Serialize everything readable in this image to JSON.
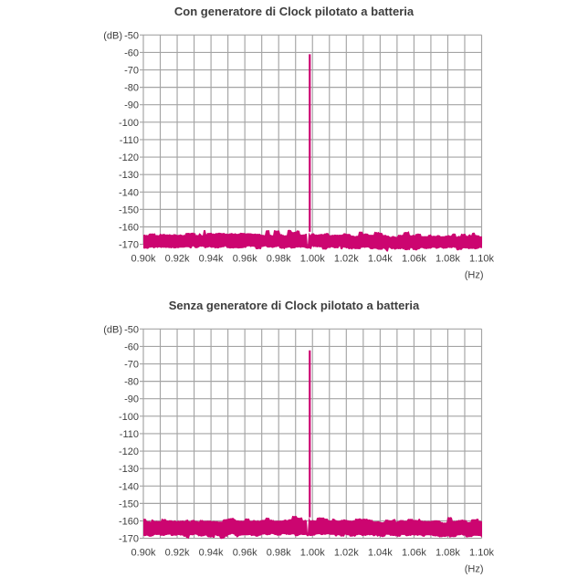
{
  "page": {
    "background": "#ffffff"
  },
  "style": {
    "grid_color": "#a4a4a4",
    "text_color": "#3f3f3f"
  },
  "chart_data": [
    {
      "type": "line",
      "title": "Con generatore di Clock pilotato a batteria",
      "x_unit_label": "(Hz)",
      "y_unit_label": "(dB)",
      "x_tick_labels": [
        "0.90k",
        "0.92k",
        "0.94k",
        "0.96k",
        "0.98k",
        "1.00k",
        "1.02k",
        "1.04k",
        "1.06k",
        "1.08k",
        "1.10k"
      ],
      "y_tick_labels": [
        "-50",
        "-60",
        "-70",
        "-80",
        "-90",
        "-100",
        "-110",
        "-120",
        "-130",
        "-140",
        "-150",
        "-160",
        "-170"
      ],
      "x_range_khz": [
        0.9,
        1.1
      ],
      "y_range_db": [
        -50,
        -170
      ],
      "x_gridline_step_khz": 0.01,
      "y_gridline_step_db": 10,
      "grid": true,
      "legend": false,
      "series": [
        {
          "name": "spectrum",
          "peak": {
            "x_khz": 1.0,
            "level_db": -61.0
          },
          "noise_floor": {
            "band_top_db": -164.8,
            "band_bottom_db": -172.0,
            "tips_top_db": -162.5,
            "tips_bottom_db": -173.5
          }
        }
      ],
      "trace_color": "#cc0570",
      "noise_seed": 7
    },
    {
      "type": "line",
      "title": "Senza generatore di Clock pilotato a batteria",
      "x_unit_label": "(Hz)",
      "y_unit_label": "(dB)",
      "x_tick_labels": [
        "0.90k",
        "0.92k",
        "0.94k",
        "0.96k",
        "0.98k",
        "1.00k",
        "1.02k",
        "1.04k",
        "1.06k",
        "1.08k",
        "1.10k"
      ],
      "y_tick_labels": [
        "-50",
        "-60",
        "-70",
        "-80",
        "-90",
        "-100",
        "-110",
        "-120",
        "-130",
        "-140",
        "-150",
        "-160",
        "-170"
      ],
      "x_range_khz": [
        0.9,
        1.1
      ],
      "y_range_db": [
        -50,
        -170
      ],
      "x_gridline_step_khz": 0.01,
      "y_gridline_step_db": 10,
      "grid": true,
      "legend": false,
      "series": [
        {
          "name": "spectrum",
          "peak": {
            "x_khz": 1.0,
            "level_db": -62.3
          },
          "noise_floor": {
            "band_top_db": -160.0,
            "band_bottom_db": -168.3,
            "tips_top_db": -157.8,
            "tips_bottom_db": -170.0
          }
        }
      ],
      "trace_color": "#cc0570",
      "noise_seed": 13
    }
  ]
}
